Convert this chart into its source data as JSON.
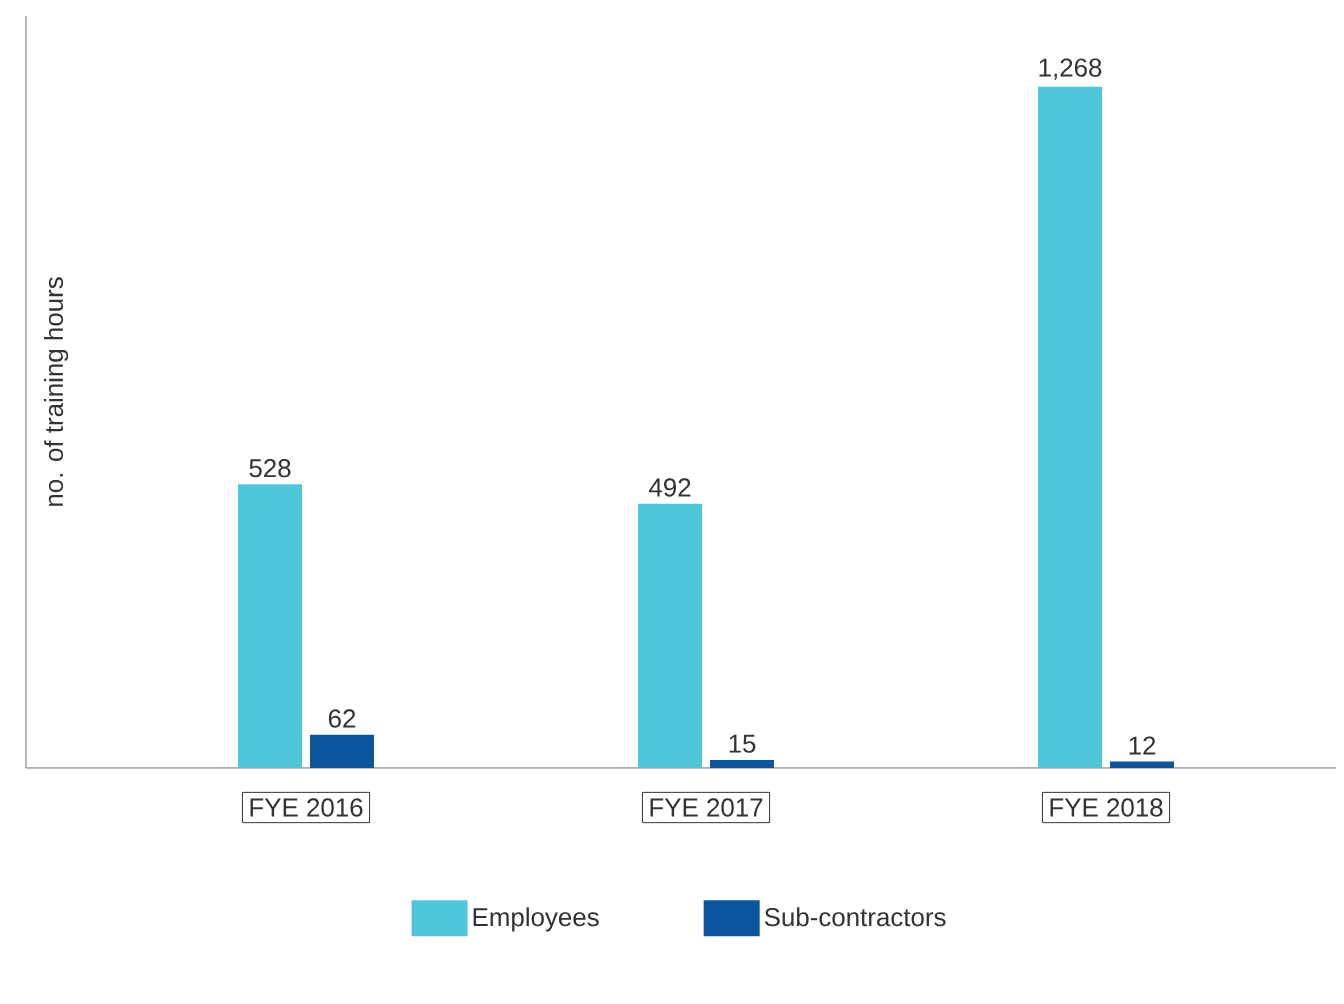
{
  "chart_data": {
    "type": "bar",
    "ylabel": "no. of training hours",
    "categories": [
      "FYE 2016",
      "FYE 2017",
      "FYE 2018"
    ],
    "series": [
      {
        "name": "Employees",
        "color": "#4fc6d9",
        "values": [
          528,
          492,
          1268
        ],
        "value_labels": [
          "528",
          "492",
          "1,268"
        ]
      },
      {
        "name": "Sub-contractors",
        "color": "#0a54a0",
        "values": [
          62,
          15,
          12
        ],
        "value_labels": [
          "62",
          "15",
          "12"
        ]
      }
    ],
    "ylim": [
      0,
      1400
    ],
    "tick_labels": "x",
    "data_labels": true,
    "legend": "bottom",
    "grid": false
  }
}
